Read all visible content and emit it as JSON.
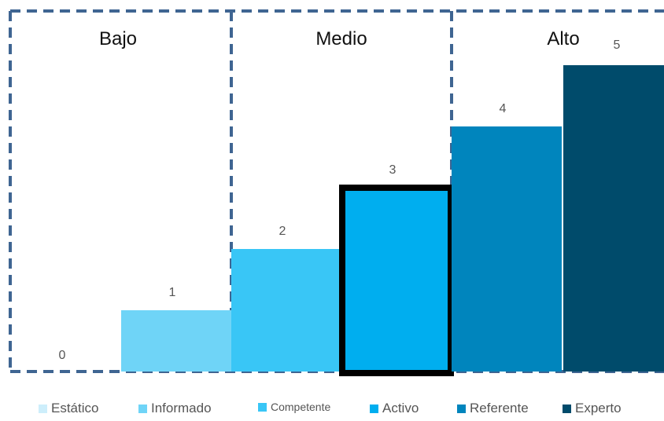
{
  "chart_data": {
    "type": "bar",
    "categories": [
      "Estático",
      "Informado",
      "Competente",
      "Activo",
      "Referente",
      "Experto"
    ],
    "values": [
      0,
      1,
      2,
      3,
      4,
      5
    ],
    "value_labels": [
      "0",
      "1",
      "2",
      "3",
      "4",
      "5"
    ],
    "ylim": [
      0,
      5.5
    ],
    "colors": [
      "#cdeefb",
      "#6fd4f7",
      "#39c6f6",
      "#00aeef",
      "#0085bd",
      "#004b6b"
    ],
    "highlighted_category": "Activo",
    "groups": [
      {
        "label": "Bajo",
        "categories": [
          "Estático",
          "Informado"
        ]
      },
      {
        "label": "Medio",
        "categories": [
          "Competente",
          "Activo"
        ]
      },
      {
        "label": "Alto",
        "categories": [
          "Referente",
          "Experto"
        ]
      }
    ],
    "legend": {
      "position": "bottom",
      "items": [
        "Estático",
        "Informado",
        "Competente",
        "Activo",
        "Referente",
        "Experto"
      ]
    },
    "grid": false,
    "group_border_color": "#3f6592"
  }
}
